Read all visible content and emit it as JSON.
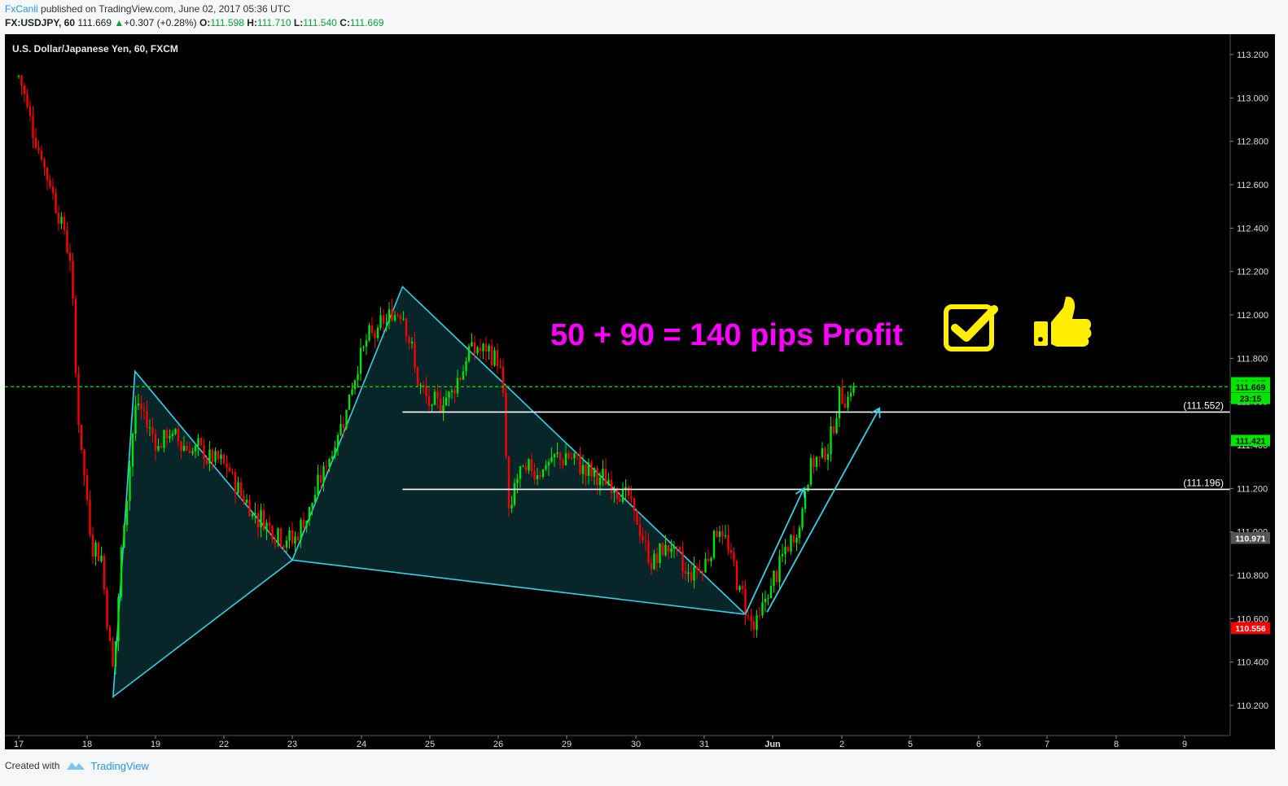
{
  "header": {
    "author": "FxCanli",
    "published": " published on TradingView.com, June 02, 2017 05:36 UTC",
    "symbol": "FX:USDJPY, 60",
    "last": "111.669",
    "change": "+0.307 (+0.28%)",
    "o_label": "O:",
    "o_value": "111.598",
    "h_label": "H:",
    "h_value": "111.710",
    "l_label": "L:",
    "l_value": "111.540",
    "c_label": "C:",
    "c_value": "111.669"
  },
  "footer": {
    "created_with": "Created with",
    "brand": "TradingView"
  },
  "chart_data": {
    "type": "candlestick",
    "title": "U.S. Dollar/Japanese Yen, 60, FXCM",
    "ylim": [
      110.05,
      113.35
    ],
    "y_ticks": [
      110.2,
      110.4,
      110.6,
      110.8,
      111.0,
      111.2,
      111.4,
      111.6,
      111.8,
      112.0,
      112.2,
      112.4,
      112.6,
      112.8,
      113.0,
      113.2
    ],
    "y_tick_labels": [
      "110.200",
      "110.400",
      "110.600",
      "110.800",
      "111.000",
      "111.200",
      "111.400",
      "111.600",
      "111.800",
      "112.000",
      "112.200",
      "112.400",
      "112.600",
      "112.800",
      "113.000",
      "113.200"
    ],
    "x_tick_labels": [
      "17",
      "18",
      "19",
      "22",
      "23",
      "24",
      "25",
      "26",
      "29",
      "30",
      "31",
      "Jun",
      "2",
      "5",
      "6",
      "7",
      "8",
      "9"
    ],
    "price_tags": [
      {
        "label": "111.687",
        "value": 111.687,
        "color": "#00e600"
      },
      {
        "label": "111.669",
        "value": 111.669,
        "color": "#00e600"
      },
      {
        "label": "23:15",
        "value": 111.615,
        "color": "#00e600"
      },
      {
        "label": "111.421",
        "value": 111.421,
        "color": "#00e600"
      },
      {
        "label": "110.972",
        "value": 110.972,
        "color": "#555555"
      },
      {
        "label": "110.971",
        "value": 110.971,
        "color": "#555555"
      },
      {
        "label": "110.558",
        "value": 110.558,
        "color": "#ff0000"
      },
      {
        "label": "110.556",
        "value": 110.556,
        "color": "#ff0000"
      }
    ],
    "current_price": 111.669,
    "levels": [
      {
        "value": 111.552,
        "label": "(111.552)"
      },
      {
        "value": 111.196,
        "label": "(111.196)"
      }
    ],
    "annotation": "50 + 90 = 140 pips Profit",
    "colors": {
      "up": "#00e600",
      "down": "#ff0000",
      "pattern": "#2fd3e8",
      "annotation": "#ff00ff",
      "icons": "#ffee00"
    },
    "pattern_points": [
      [
        18.38,
        110.24
      ],
      [
        18.7,
        111.74
      ],
      [
        23.0,
        110.87
      ],
      [
        24.6,
        112.13
      ],
      [
        31.6,
        110.62
      ]
    ],
    "price_path": [
      [
        17.0,
        113.1
      ],
      [
        17.3,
        112.75
      ],
      [
        17.6,
        112.45
      ],
      [
        17.75,
        112.25
      ],
      [
        17.85,
        111.55
      ],
      [
        17.95,
        111.25
      ],
      [
        18.05,
        110.95
      ],
      [
        18.2,
        110.9
      ],
      [
        18.3,
        110.55
      ],
      [
        18.38,
        110.35
      ],
      [
        18.5,
        110.95
      ],
      [
        18.7,
        111.6
      ],
      [
        19.1,
        111.4
      ],
      [
        19.5,
        111.45
      ],
      [
        22.0,
        111.3
      ],
      [
        22.4,
        111.1
      ],
      [
        22.8,
        111.0
      ],
      [
        23.0,
        110.95
      ],
      [
        23.3,
        111.15
      ],
      [
        23.7,
        111.5
      ],
      [
        24.0,
        111.85
      ],
      [
        24.3,
        111.95
      ],
      [
        24.6,
        112.05
      ],
      [
        24.8,
        111.7
      ],
      [
        25.0,
        111.55
      ],
      [
        25.3,
        111.65
      ],
      [
        25.6,
        111.85
      ],
      [
        26.0,
        111.8
      ],
      [
        26.2,
        111.6
      ],
      [
        26.4,
        111.15
      ],
      [
        26.5,
        110.95
      ],
      [
        26.7,
        111.25
      ],
      [
        29.0,
        111.35
      ],
      [
        29.4,
        111.25
      ],
      [
        29.8,
        111.2
      ],
      [
        30.0,
        111.05
      ],
      [
        30.2,
        110.85
      ],
      [
        30.5,
        110.95
      ],
      [
        30.7,
        110.8
      ],
      [
        31.0,
        110.85
      ],
      [
        31.2,
        111.05
      ],
      [
        31.4,
        110.85
      ],
      [
        31.6,
        110.65
      ],
      [
        31.75,
        110.55
      ],
      [
        31.9,
        110.7
      ],
      [
        32.1,
        110.85
      ],
      [
        32.4,
        111.05
      ],
      [
        32.5,
        111.3
      ],
      [
        32.7,
        111.35
      ],
      [
        32.85,
        111.45
      ],
      [
        32.95,
        111.62
      ],
      [
        33.2,
        111.67
      ]
    ]
  }
}
